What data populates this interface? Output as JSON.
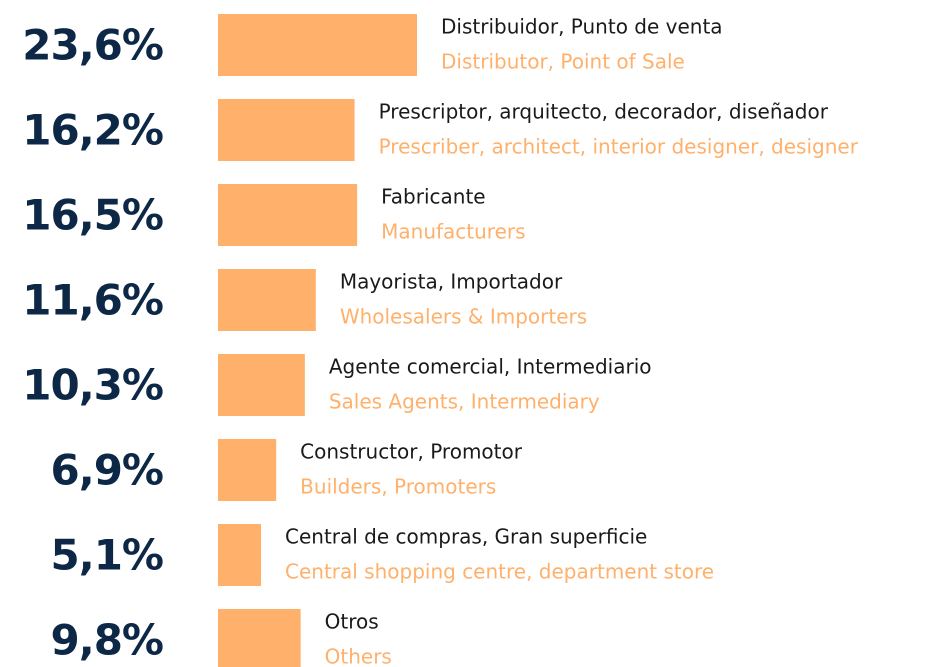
{
  "chart_data": {
    "type": "hbar",
    "categories": [
      "Distribuidor, Punto de venta",
      "Prescriptor, arquitecto, decorador, diseñador",
      "Fabricante",
      "Mayorista, Importador",
      "Agente comercial, Intermediario",
      "Constructor, Promotor",
      "Central de compras, Gran superficie",
      "Otros"
    ],
    "category_translations": [
      "Distributor, Point of Sale",
      "Prescriber, architect, interior designer, designer",
      "Manufacturers",
      "Wholesalers & Importers",
      "Sales Agents, Intermediary",
      "Builders, Promoters",
      "Central shopping centre, department store",
      "Others"
    ],
    "values": [
      23.6,
      16.2,
      16.5,
      11.6,
      10.3,
      6.9,
      5.1,
      9.8
    ],
    "value_labels": [
      "23,6%",
      "16,2%",
      "16,5%",
      "11,6%",
      "10,3%",
      "6,9%",
      "5,1%",
      "9,8%"
    ],
    "color": "#ffb06b"
  }
}
